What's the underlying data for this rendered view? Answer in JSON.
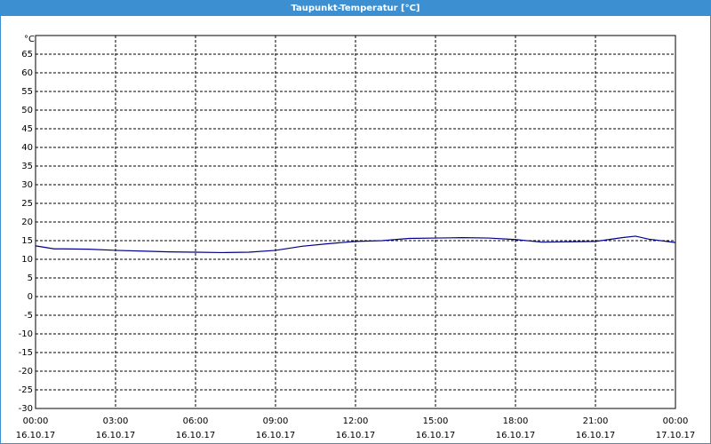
{
  "chart_data": {
    "type": "line",
    "title": "Taupunkt-Temperatur [°C]",
    "y_unit": "°C",
    "x": [
      0,
      0.7,
      1,
      2,
      3,
      4,
      5,
      6,
      7,
      8,
      9,
      10,
      11,
      12,
      13,
      14,
      15,
      16,
      17,
      18,
      19,
      20,
      21,
      22,
      22.5,
      23,
      24
    ],
    "series": [
      {
        "name": "Taupunkt-Temperatur",
        "color": "#00008b",
        "values": [
          13.6,
          12.8,
          12.8,
          12.7,
          12.4,
          12.2,
          12.0,
          11.9,
          11.8,
          11.9,
          12.4,
          13.5,
          14.2,
          14.8,
          15.0,
          15.6,
          15.7,
          15.8,
          15.7,
          15.3,
          14.6,
          14.7,
          14.8,
          15.8,
          16.2,
          15.4,
          14.5
        ]
      }
    ],
    "xlim": [
      0,
      24
    ],
    "xticks": [
      {
        "value": 0,
        "label": "00:00",
        "date": "16.10.17"
      },
      {
        "value": 3,
        "label": "03:00",
        "date": "16.10.17"
      },
      {
        "value": 6,
        "label": "06:00",
        "date": "16.10.17"
      },
      {
        "value": 9,
        "label": "09:00",
        "date": "16.10.17"
      },
      {
        "value": 12,
        "label": "12:00",
        "date": "16.10.17"
      },
      {
        "value": 15,
        "label": "15:00",
        "date": "16.10.17"
      },
      {
        "value": 18,
        "label": "18:00",
        "date": "16.10.17"
      },
      {
        "value": 21,
        "label": "21:00",
        "date": "16.10.17"
      },
      {
        "value": 24,
        "label": "00:00",
        "date": "17.10.17"
      }
    ],
    "ylim": [
      -30,
      70
    ],
    "yticks": [
      -30,
      -25,
      -20,
      -15,
      -10,
      -5,
      0,
      5,
      10,
      15,
      20,
      25,
      30,
      35,
      40,
      45,
      50,
      55,
      60,
      65
    ],
    "grid": true
  }
}
